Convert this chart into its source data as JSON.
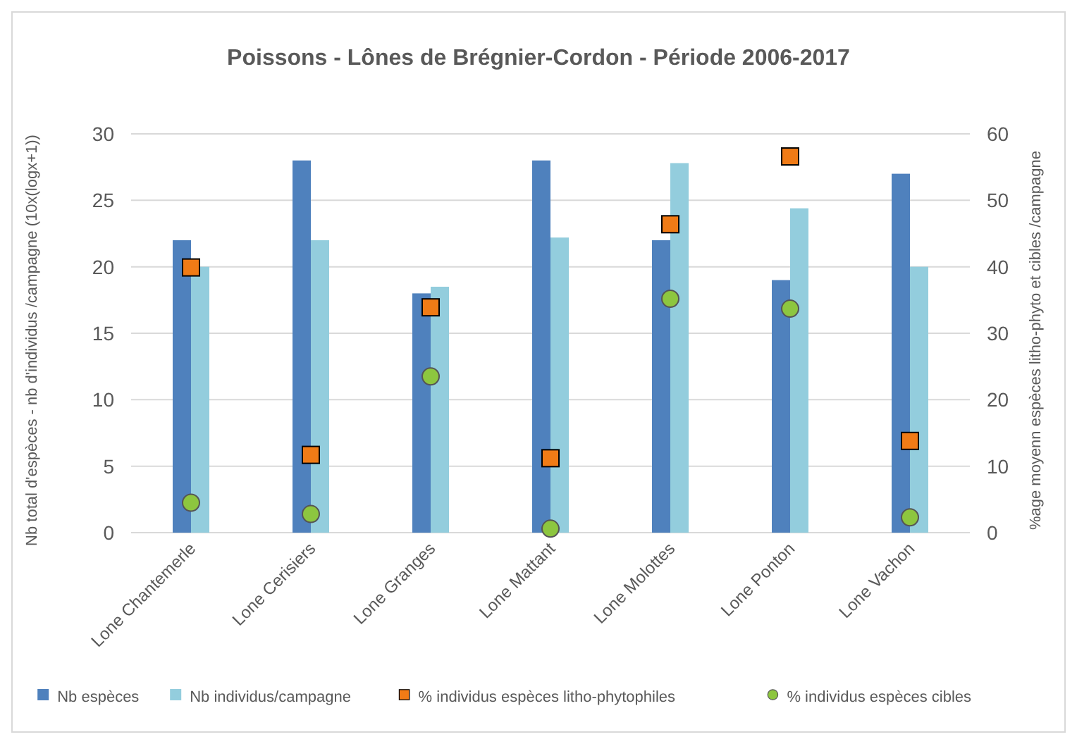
{
  "chart_data": {
    "type": "bar",
    "title": "Poissons - Lônes de Brégnier-Cordon - Période 2006-2017",
    "ylabel": "Nb total d'espèces - nb d'individus /campagne (10x(logx+1))",
    "y2label": "%age moyenn espèces litho-phyto et cibles /campagne",
    "categories": [
      "Lone Chantemerle",
      "Lone Cerisiers",
      "Lone Granges",
      "Lone Mattant",
      "Lone Molottes",
      "Lone Ponton",
      "Lone Vachon"
    ],
    "series": [
      {
        "name": "Nb espèces",
        "color": "#4f81bd",
        "values": [
          22,
          28,
          18,
          28,
          22,
          19,
          27
        ]
      },
      {
        "name": "Nb individus/campagne",
        "color": "#93cddd",
        "values": [
          20,
          22,
          18.5,
          22.2,
          27.8,
          24.4,
          20
        ]
      },
      {
        "name": "% individus espèces litho-phytophiles",
        "type": "scatter",
        "marker": "square",
        "axis": "y2",
        "color": "#f07b16",
        "values": [
          39.9,
          11.7,
          33.9,
          11.2,
          46.4,
          56.6,
          13.8
        ]
      },
      {
        "name": "% individus espèces cibles",
        "type": "scatter",
        "marker": "circle",
        "axis": "y2",
        "color": "#8dc63f",
        "values": [
          4.5,
          2.8,
          23.5,
          0.6,
          35.2,
          33.7,
          2.3
        ]
      }
    ],
    "ylim": [
      0,
      30
    ],
    "yticks": [
      0,
      5,
      10,
      15,
      20,
      25,
      30
    ],
    "y2lim": [
      0,
      60
    ],
    "y2ticks": [
      0,
      10,
      20,
      30,
      40,
      50,
      60
    ],
    "grid": "y",
    "legend": "bottom"
  }
}
